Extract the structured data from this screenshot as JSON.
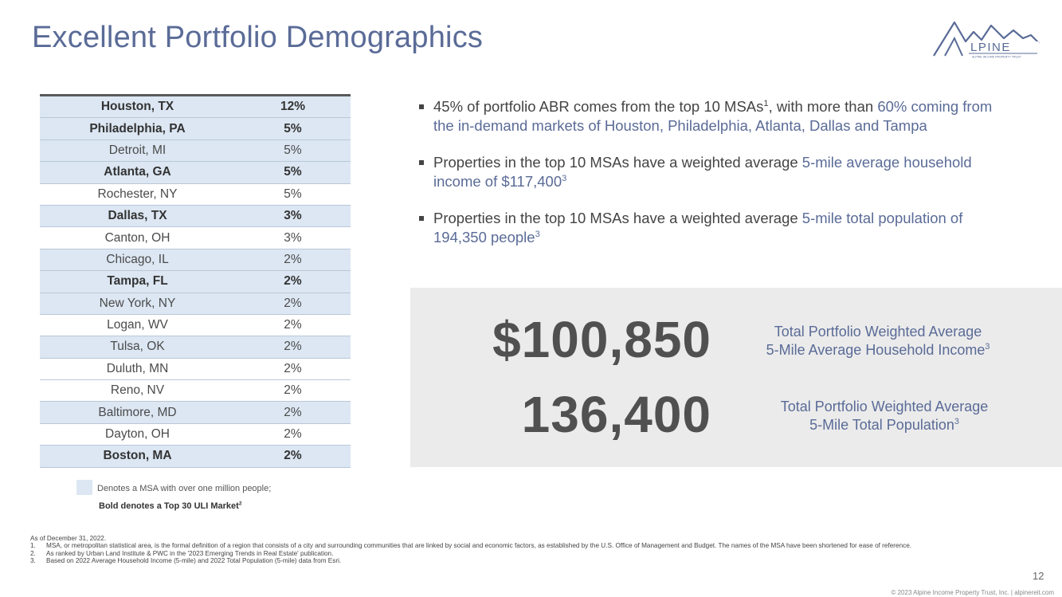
{
  "title": "Excellent Portfolio Demographics",
  "logo": {
    "text": "LPINE",
    "tagline": "ALPINE INCOME PROPERTY TRUST",
    "color": "#5a6b97"
  },
  "msa_table": [
    {
      "city": "Houston, TX",
      "pct": "12%",
      "metro": true,
      "top30": true
    },
    {
      "city": "Philadelphia, PA",
      "pct": "5%",
      "metro": true,
      "top30": true
    },
    {
      "city": "Detroit, MI",
      "pct": "5%",
      "metro": true,
      "top30": false
    },
    {
      "city": "Atlanta, GA",
      "pct": "5%",
      "metro": true,
      "top30": true
    },
    {
      "city": "Rochester, NY",
      "pct": "5%",
      "metro": false,
      "top30": false
    },
    {
      "city": "Dallas, TX",
      "pct": "3%",
      "metro": true,
      "top30": true
    },
    {
      "city": "Canton, OH",
      "pct": "3%",
      "metro": false,
      "top30": false
    },
    {
      "city": "Chicago, IL",
      "pct": "2%",
      "metro": true,
      "top30": false
    },
    {
      "city": "Tampa, FL",
      "pct": "2%",
      "metro": true,
      "top30": true
    },
    {
      "city": "New York, NY",
      "pct": "2%",
      "metro": true,
      "top30": false
    },
    {
      "city": "Logan, WV",
      "pct": "2%",
      "metro": false,
      "top30": false
    },
    {
      "city": "Tulsa, OK",
      "pct": "2%",
      "metro": true,
      "top30": false
    },
    {
      "city": "Duluth, MN",
      "pct": "2%",
      "metro": false,
      "top30": false
    },
    {
      "city": "Reno, NV",
      "pct": "2%",
      "metro": false,
      "top30": false
    },
    {
      "city": "Baltimore, MD",
      "pct": "2%",
      "metro": true,
      "top30": false
    },
    {
      "city": "Dayton, OH",
      "pct": "2%",
      "metro": false,
      "top30": false
    },
    {
      "city": "Boston, MA",
      "pct": "2%",
      "metro": true,
      "top30": true
    }
  ],
  "legend": {
    "line1": "Denotes a MSA with over one million people;",
    "line2": "Bold denotes a Top 30 ULI Market",
    "line2_sup": "2",
    "swatch_color": "#dce7f3"
  },
  "bullets": [
    {
      "a": "45% of portfolio ABR comes from the top 10 MSAs",
      "a_sup": "1",
      "b": ", with more than ",
      "hl": "60% coming from the in-demand markets of Houston, Philadelphia, Atlanta, Dallas and Tampa",
      "hl_sup": ""
    },
    {
      "a": "Properties in the top 10 MSAs have a weighted average ",
      "a_sup": "",
      "b": "",
      "hl": "5-mile average household income of $117,400",
      "hl_sup": "3"
    },
    {
      "a": "Properties in the top 10 MSAs have a weighted average ",
      "a_sup": "",
      "b": "",
      "hl": "5-mile total population of 194,350 people",
      "hl_sup": "3"
    }
  ],
  "stats": {
    "income_value": "$100,850",
    "income_label_1": "Total Portfolio Weighted Average",
    "income_label_2": "5-Mile Average Household Income",
    "income_sup": "3",
    "population_value": "136,400",
    "population_label_1": "Total Portfolio Weighted Average",
    "population_label_2": "5-Mile Total Population",
    "population_sup": "3"
  },
  "footnotes": {
    "as_of": "As of December 31, 2022.",
    "items": [
      {
        "num": "1.",
        "text": "MSA, or metropolitan statistical area, is the formal definition of a region that consists of a city and surrounding communities that are linked by social and economic factors, as established by the U.S. Office of Management and Budget. The names of the MSA have been shortened for ease of reference."
      },
      {
        "num": "2.",
        "text": "As ranked by Urban Land Institute & PWC in the '2023 Emerging Trends in Real Estate' publication."
      },
      {
        "num": "3.",
        "text": "Based on 2022 Average Household Income (5-mile) and 2022 Total Population (5-mile) data from Esri."
      }
    ]
  },
  "page_number": "12",
  "copyright": "© 2023 Alpine Income Property Trust, Inc.  |  alpinereit.com"
}
